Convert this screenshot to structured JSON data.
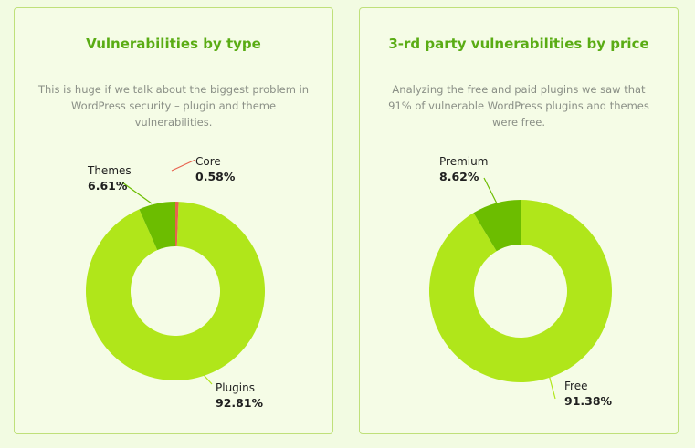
{
  "chart_data": [
    {
      "type": "pie",
      "title": "Vulnerabilities by type",
      "subtitle": "This is huge if we talk about the biggest problem in WordPress security – plugin and theme vulnerabilities.",
      "categories": [
        "Core",
        "Plugins",
        "Themes"
      ],
      "values": [
        0.58,
        92.81,
        6.61
      ],
      "value_labels": [
        "0.58%",
        "92.81%",
        "6.61%"
      ],
      "colors": [
        "#e8624f",
        "#b0e61a",
        "#6cbd00"
      ]
    },
    {
      "type": "pie",
      "title": "3-rd party vulnerabilities by price",
      "subtitle": "Analyzing the free and paid plugins we saw that 91% of vulnerable WordPress plugins and themes were free.",
      "categories": [
        "Free",
        "Premium"
      ],
      "values": [
        91.38,
        8.62
      ],
      "value_labels": [
        "91.38%",
        "8.62%"
      ],
      "colors": [
        "#b0e61a",
        "#6cbd00"
      ]
    }
  ],
  "theme": {
    "title_color": "#5aac14",
    "border_color": "#bfe07a",
    "text_color": "#1f1f1f",
    "desc_color": "#8a8f86"
  }
}
